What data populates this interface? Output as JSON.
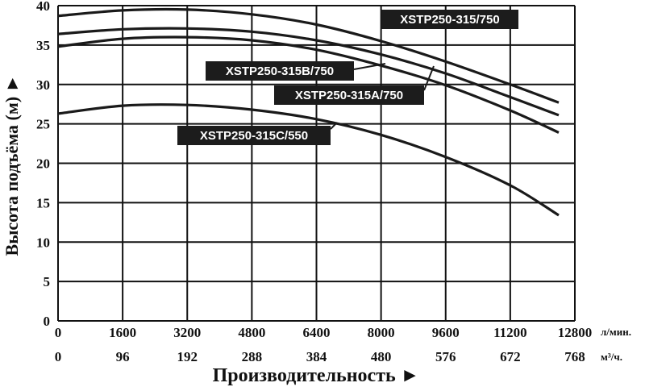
{
  "chart_data": {
    "type": "line",
    "xlabel": "Производительность ►",
    "ylabel": "Высота подъёма (м) ►",
    "x_unit": "л/мин.",
    "x2_unit": "м³/ч.",
    "xlim": [
      0,
      12800
    ],
    "ylim": [
      0,
      40
    ],
    "x_ticks": [
      0,
      1600,
      3200,
      4800,
      6400,
      8000,
      9600,
      11200,
      12800
    ],
    "x2_ticks": [
      0,
      96,
      192,
      288,
      384,
      480,
      576,
      672,
      768
    ],
    "y_ticks": [
      0,
      5,
      10,
      15,
      20,
      25,
      30,
      35,
      40
    ],
    "x_tick_labels": [
      "0",
      "1600",
      "3200",
      "4800",
      "6400",
      "8000",
      "9600",
      "11200",
      "12800"
    ],
    "x2_tick_labels": [
      "0",
      "96",
      "192",
      "288",
      "384",
      "480",
      "576",
      "672",
      "768"
    ],
    "y_tick_labels": [
      "0",
      "5",
      "10",
      "15",
      "20",
      "25",
      "30",
      "35",
      "40"
    ],
    "grid": true,
    "series": [
      {
        "name": "XSTP250-315/750",
        "x": [
          0,
          1600,
          3200,
          4800,
          6400,
          8000,
          9600,
          11200,
          12400
        ],
        "y": [
          38.7,
          39.4,
          39.5,
          38.9,
          37.6,
          35.5,
          32.9,
          30.0,
          27.7
        ]
      },
      {
        "name": "XSTP250-315B/750",
        "x": [
          0,
          1600,
          3200,
          4800,
          6400,
          8000,
          9600,
          11200,
          12400
        ],
        "y": [
          36.4,
          37.0,
          37.1,
          36.7,
          35.6,
          33.8,
          31.4,
          28.4,
          26.1
        ]
      },
      {
        "name": "XSTP250-315A/750",
        "x": [
          0,
          1600,
          3200,
          4800,
          6400,
          8000,
          9600,
          11200,
          12400
        ],
        "y": [
          34.8,
          35.8,
          36.0,
          35.6,
          34.4,
          32.4,
          29.9,
          26.7,
          23.9
        ]
      },
      {
        "name": "XSTP250-315C/550",
        "x": [
          0,
          1600,
          3200,
          4800,
          6400,
          8000,
          9600,
          11200,
          12400
        ],
        "y": [
          26.3,
          27.3,
          27.4,
          26.8,
          25.6,
          23.6,
          20.8,
          17.2,
          13.4
        ]
      }
    ]
  }
}
